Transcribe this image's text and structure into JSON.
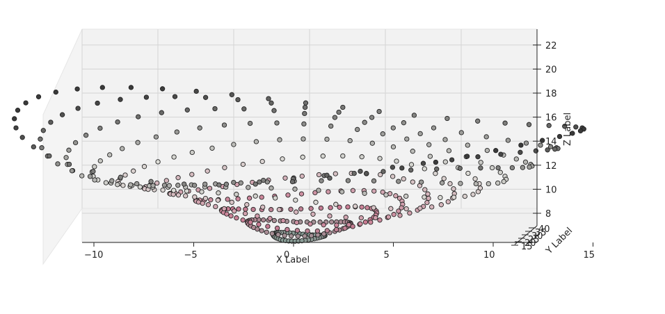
{
  "chart_data": {
    "type": "scatter",
    "projection": "3d",
    "xlabel": "X Label",
    "ylabel": "Y Label",
    "zlabel": "Z Label",
    "xlim": [
      -12,
      18
    ],
    "ylim": [
      -5,
      45
    ],
    "zlim": [
      6.5,
      23.5
    ],
    "x_ticks": [
      "−10",
      "−5",
      "0",
      "5",
      "10",
      "15"
    ],
    "y_ticks": [
      "15",
      "20",
      "25",
      "30",
      "35",
      "40"
    ],
    "z_ticks": [
      "8",
      "10",
      "12",
      "14",
      "16",
      "18",
      "20",
      "22"
    ],
    "grid": true,
    "colormap": "ocean_to_pink_to_gray",
    "colors": {
      "low": "#6fae9a",
      "mid": "#c97a92",
      "high": "#3a3a3a",
      "pane": "#f2f2f2",
      "edge": "#222222"
    },
    "surface": "cone-like radial height field sampled on a polar grid",
    "generator": {
      "radii": [
        2,
        4,
        6,
        8,
        10,
        12,
        14,
        16,
        18,
        20,
        22
      ],
      "angles_per_ring": 48,
      "center": [
        0,
        18
      ]
    }
  }
}
